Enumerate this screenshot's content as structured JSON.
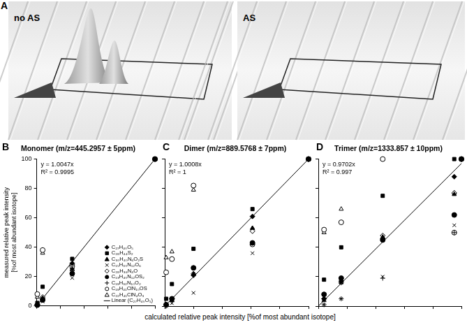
{
  "image_panel": {
    "label": "A",
    "images": [
      "no AS",
      "AS"
    ]
  },
  "chart_data": [
    {
      "panel": "B",
      "type": "scatter",
      "title": "Monomer (m/z=445.2957 ± 5ppm)",
      "y_label": [
        "measured relative peak intensity",
        "[%of most abundant isotope]"
      ],
      "xlim": [
        0,
        100
      ],
      "ylim": [
        0,
        100
      ],
      "xticks": [
        0,
        20,
        40,
        60,
        80,
        100
      ],
      "yticks": [
        0,
        20,
        40,
        60,
        80,
        100
      ],
      "grid": false,
      "tick_labels": "y",
      "legend": "lower right",
      "annotations": [
        "y = 1.0047x",
        "R² = 0.9995"
      ],
      "series": [
        {
          "name": "C₂₇H₄₀O₅",
          "marker": "diamond",
          "color": "#000000",
          "x": [
            100,
            30,
            5,
            0.5
          ],
          "values": [
            100,
            29,
            5,
            1
          ]
        },
        {
          "name": "C₂₈H₄₄S₂",
          "marker": "square",
          "color": "#000000",
          "x": [
            100,
            30,
            5,
            0.5
          ],
          "values": [
            100,
            32,
            13,
            2
          ]
        },
        {
          "name": "C₃₀H₄₀N₆O₂S",
          "marker": "triangle",
          "color": "#000000",
          "x": [
            100,
            30,
            5,
            0.5
          ],
          "values": [
            100,
            25,
            5,
            1
          ]
        },
        {
          "name": "C₁₅H₃₀N₁₂O₆",
          "marker": "cross",
          "color": "#000000",
          "x": [
            100,
            30,
            5,
            0.5
          ],
          "values": [
            100,
            19,
            3,
            0.5
          ]
        },
        {
          "name": "C₂₈H₃₆N₄O",
          "marker": "open_diamond",
          "color": "#000000",
          "x": [
            100,
            30,
            5,
            0.5
          ],
          "values": [
            100,
            28,
            6,
            1
          ]
        },
        {
          "name": "C₁₃H₄₀N₁₂OS₂",
          "marker": "circle",
          "color": "#000000",
          "x": [
            100,
            30,
            5,
            0.5
          ],
          "values": [
            100,
            22,
            4,
            0.5
          ]
        },
        {
          "name": "C₁₉H₃₂N₁₀O₂",
          "marker": "plus",
          "color": "#000000",
          "x": [
            100,
            30,
            5,
            0.5
          ],
          "values": [
            100,
            24,
            4,
            1
          ]
        },
        {
          "name": "C₁₉H₄₁ClN₁₀OS",
          "marker": "open_circle",
          "color": "#000000",
          "x": [
            100,
            30,
            5,
            0.5
          ],
          "values": [
            100,
            27,
            38,
            8
          ]
        },
        {
          "name": "C₂₂H₄₁ClN₄O₃",
          "marker": "open_triangle",
          "color": "#000000",
          "x": [
            100,
            30,
            5,
            0.5
          ],
          "values": [
            100,
            26,
            36,
            6
          ]
        },
        {
          "name": "Linear (C₂₇H₄₀O₅)",
          "type": "line",
          "line_style": "solid",
          "color": "#000000",
          "x": [
            0,
            100
          ],
          "values": [
            0,
            100
          ]
        }
      ]
    },
    {
      "panel": "C",
      "type": "scatter",
      "title": "Dimer (m/z=889.5768 ± 7ppm)",
      "x_label": "calculated relative peak intensity [%of most abundant isotope]",
      "xlim": [
        0,
        100
      ],
      "ylim": [
        0,
        100
      ],
      "xticks": [
        0,
        20,
        40,
        60,
        80,
        100
      ],
      "yticks": [
        0,
        20,
        40,
        60,
        80,
        100
      ],
      "grid": false,
      "tick_labels": false,
      "annotations": [
        "y = 1.0008x",
        "R² = 1"
      ],
      "series": [
        {
          "name": "C₂₇H₄₀O₅",
          "marker": "diamond",
          "color": "#000000",
          "x": [
            100,
            61,
            20,
            5,
            1
          ],
          "values": [
            100,
            61,
            21,
            5,
            1
          ]
        },
        {
          "name": "C₂₈H₄₄S₂",
          "marker": "square",
          "color": "#000000",
          "x": [
            100,
            61,
            20,
            5,
            1
          ],
          "values": [
            100,
            66,
            39,
            15,
            5
          ]
        },
        {
          "name": "C₃₀H₄₀N₆O₂S",
          "marker": "triangle",
          "color": "#000000",
          "x": [
            100,
            61,
            20,
            5,
            1
          ],
          "values": [
            100,
            53,
            22,
            4,
            1
          ]
        },
        {
          "name": "C₁₅H₃₀N₁₂O₆",
          "marker": "cross",
          "color": "#000000",
          "x": [
            100,
            61,
            20,
            5,
            1
          ],
          "values": [
            100,
            36,
            9,
            2,
            0
          ]
        },
        {
          "name": "C₂₈H₃₆N₄O",
          "marker": "open_diamond",
          "color": "#000000",
          "x": [
            100,
            61,
            20,
            5,
            1
          ],
          "values": [
            100,
            51,
            22,
            5,
            1
          ]
        },
        {
          "name": "C₁₃H₄₀N₁₂OS₂",
          "marker": "circle",
          "color": "#000000",
          "x": [
            100,
            61,
            20,
            5,
            1
          ],
          "values": [
            100,
            43,
            26,
            5,
            1
          ]
        },
        {
          "name": "C₁₉H₃₂N₁₀O₂",
          "marker": "plus",
          "color": "#000000",
          "x": [
            100,
            61,
            20,
            5,
            1
          ],
          "values": [
            100,
            51,
            21,
            3,
            0
          ]
        },
        {
          "name": "C₁₉H₄₁ClN₁₀OS",
          "marker": "open_circle",
          "color": "#000000",
          "x": [
            100,
            61,
            20,
            5,
            1
          ],
          "values": [
            100,
            42,
            82,
            32,
            23
          ]
        },
        {
          "name": "C₂₂H₄₁ClN₄O₃",
          "marker": "open_triangle",
          "color": "#000000",
          "x": [
            100,
            61,
            20,
            5,
            1
          ],
          "values": [
            100,
            53,
            79,
            37,
            33
          ]
        },
        {
          "name": "Linear (C₂₇H₄₀O₅)",
          "type": "line",
          "line_style": "solid",
          "color": "#000000",
          "x": [
            0,
            100
          ],
          "values": [
            0,
            100
          ]
        }
      ]
    },
    {
      "panel": "D",
      "type": "scatter",
      "title": "Trimer (m/z=1333.857 ± 10ppm)",
      "xlim": [
        0,
        100
      ],
      "ylim": [
        0,
        100
      ],
      "xticks": [
        0,
        20,
        40,
        60,
        80,
        100
      ],
      "yticks": [
        0,
        20,
        40,
        60,
        80,
        100
      ],
      "grid": false,
      "tick_labels": false,
      "annotations": [
        "y = 0.9702x",
        "R² = 0.997"
      ],
      "series": [
        {
          "name": "C₂₇H₄₀O₅",
          "marker": "diamond",
          "color": "#000000",
          "x": [
            100,
            95,
            45,
            16,
            4
          ],
          "values": [
            100,
            88,
            46,
            17,
            5
          ]
        },
        {
          "name": "C₂₈H₄₄S₂",
          "marker": "square",
          "color": "#000000",
          "x": [
            100,
            95,
            45,
            16,
            4
          ],
          "values": [
            100,
            100,
            75,
            40,
            18
          ]
        },
        {
          "name": "C₃₀H₄₀N₆O₂S",
          "marker": "triangle",
          "color": "#000000",
          "x": [
            100,
            95,
            45,
            16,
            4
          ],
          "values": [
            100,
            76,
            47,
            16,
            4
          ]
        },
        {
          "name": "C₁₅H₃₀N₁₂O₆",
          "marker": "cross",
          "color": "#000000",
          "x": [
            100,
            95,
            45,
            16,
            4
          ],
          "values": [
            100,
            55,
            20,
            5,
            1
          ]
        },
        {
          "name": "C₂₈H₃₆N₄O",
          "marker": "open_diamond",
          "color": "#000000",
          "x": [
            100,
            95,
            45,
            16,
            4
          ],
          "values": [
            100,
            77,
            48,
            16,
            5
          ]
        },
        {
          "name": "C₁₃H₄₀N₁₂OS₂",
          "marker": "circle",
          "color": "#000000",
          "x": [
            100,
            95,
            45,
            16,
            4
          ],
          "values": [
            100,
            62,
            45,
            19,
            8
          ]
        },
        {
          "name": "C₁₉H₃₂N₁₀O₂",
          "marker": "plus",
          "color": "#000000",
          "x": [
            100,
            95,
            45,
            16,
            4
          ],
          "values": [
            100,
            50,
            19,
            5,
            1
          ]
        },
        {
          "name": "C₁₉H₄₁ClN₁₀OS",
          "marker": "open_circle",
          "color": "#000000",
          "x": [
            100,
            95,
            45,
            16,
            4
          ],
          "values": [
            100,
            50,
            100,
            57,
            52
          ]
        },
        {
          "name": "C₂₂H₄₁ClN₄O₃",
          "marker": "open_triangle",
          "color": "#000000",
          "x": [
            100,
            95,
            45,
            16,
            4
          ],
          "values": [
            100,
            77,
            100,
            66,
            50
          ]
        },
        {
          "name": "Linear (C₂₇H₄₀O₅)",
          "type": "line",
          "line_style": "solid",
          "color": "#000000",
          "x": [
            0,
            100
          ],
          "values": [
            0,
            97
          ]
        }
      ]
    }
  ]
}
